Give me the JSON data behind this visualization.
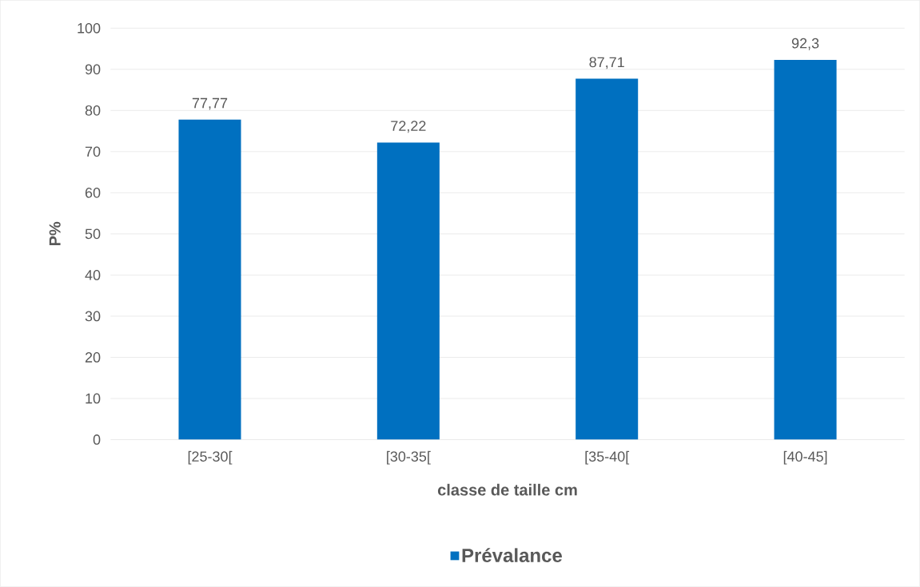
{
  "chart_data": {
    "type": "bar",
    "xlabel": "classe de taille cm",
    "ylabel": "P%",
    "categories": [
      "[25-30[",
      "[30-35[",
      "[35-40[",
      "[40-45]"
    ],
    "series": [
      {
        "name": "Prévalance",
        "color": "#0070c0",
        "values": [
          77.77,
          72.22,
          87.71,
          92.3
        ],
        "value_labels": [
          "77,77",
          "72,22",
          "87,71",
          "92,3"
        ]
      }
    ],
    "ylim": [
      0,
      100
    ],
    "yticks": [
      0,
      10,
      20,
      30,
      40,
      50,
      60,
      70,
      80,
      90,
      100
    ],
    "grid": "y",
    "legend": "bottom"
  }
}
